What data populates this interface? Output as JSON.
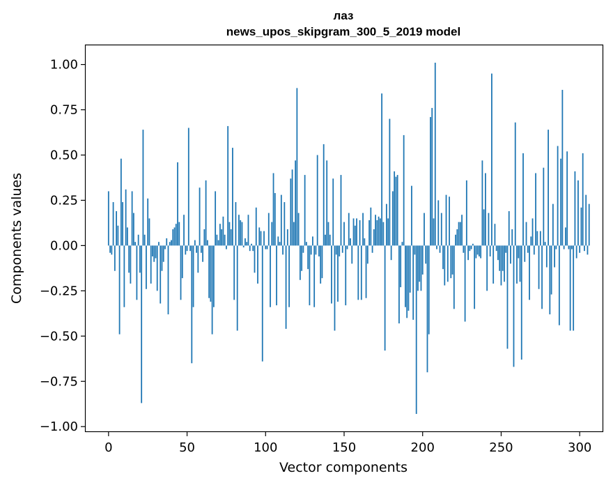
{
  "chart_data": {
    "type": "bar",
    "title": "лаз",
    "subtitle": "news_upos_skipgram_300_5_2019 model",
    "xlabel": "Vector components",
    "ylabel": "Components values",
    "xlim": [
      -15,
      315
    ],
    "ylim": [
      -1.03,
      1.11
    ],
    "xticks": [
      0,
      50,
      100,
      150,
      200,
      250,
      300
    ],
    "xtick_labels": [
      "0",
      "50",
      "100",
      "150",
      "200",
      "250",
      "300"
    ],
    "yticks": [
      1.0,
      0.75,
      0.5,
      0.25,
      0.0,
      -0.25,
      -0.5,
      -0.75,
      -1.0
    ],
    "ytick_labels": [
      "1.00",
      "0.75",
      "0.50",
      "0.25",
      "0.00",
      "−0.25",
      "−0.50",
      "−0.75",
      "−1.00"
    ],
    "bar_color": "#1f77b4",
    "values": [
      0.3,
      -0.04,
      -0.05,
      0.24,
      -0.14,
      0.19,
      0.11,
      -0.49,
      0.48,
      0.24,
      -0.34,
      0.31,
      0.1,
      -0.15,
      -0.21,
      0.3,
      0.18,
      0.02,
      -0.3,
      0.06,
      -0.15,
      -0.87,
      0.64,
      0.06,
      -0.24,
      0.26,
      0.15,
      -0.21,
      -0.06,
      -0.09,
      -0.07,
      -0.25,
      0.02,
      -0.32,
      -0.14,
      -0.09,
      -0.02,
      0.04,
      -0.38,
      0.02,
      0.03,
      0.09,
      0.1,
      0.12,
      0.46,
      0.13,
      -0.3,
      -0.18,
      0.17,
      -0.05,
      -0.03,
      0.65,
      -0.03,
      -0.65,
      -0.34,
      0.03,
      -0.04,
      -0.15,
      0.32,
      -0.04,
      -0.09,
      0.09,
      0.36,
      0.03,
      -0.29,
      -0.31,
      -0.49,
      -0.34,
      0.3,
      0.06,
      0.03,
      0.12,
      0.09,
      0.16,
      0.06,
      -0.02,
      0.66,
      0.13,
      0.09,
      0.54,
      -0.3,
      0.24,
      -0.47,
      0.17,
      0.14,
      0.13,
      -0.01,
      0.04,
      0.02,
      0.17,
      -0.03,
      0.01,
      -0.03,
      -0.15,
      0.21,
      -0.21,
      0.1,
      0.08,
      -0.64,
      0.08,
      -0.02,
      -0.02,
      0.18,
      -0.34,
      0.13,
      0.4,
      0.29,
      -0.33,
      0.05,
      0.02,
      0.28,
      -0.05,
      0.24,
      -0.46,
      0.09,
      -0.34,
      0.37,
      0.42,
      0.13,
      0.47,
      0.87,
      0.18,
      -0.19,
      -0.14,
      -0.04,
      0.39,
      0.02,
      -0.13,
      -0.33,
      -0.05,
      0.05,
      -0.34,
      -0.05,
      0.5,
      -0.06,
      -0.21,
      -0.18,
      0.56,
      0.06,
      0.47,
      0.13,
      0.06,
      -0.32,
      0.37,
      -0.47,
      -0.05,
      -0.31,
      -0.06,
      0.39,
      -0.04,
      0.13,
      -0.33,
      -0.02,
      0.18,
      0.04,
      -0.1,
      0.15,
      0.11,
      0.15,
      -0.3,
      0.14,
      -0.3,
      0.18,
      0.04,
      -0.29,
      -0.1,
      0.14,
      0.21,
      -0.04,
      0.09,
      0.17,
      0.14,
      0.16,
      0.15,
      0.84,
      0.13,
      -0.58,
      0.23,
      0.15,
      0.7,
      -0.08,
      0.3,
      0.41,
      0.38,
      0.39,
      -0.43,
      -0.23,
      0.02,
      0.61,
      -0.34,
      -0.4,
      -0.36,
      -0.26,
      0.33,
      -0.41,
      -0.05,
      -0.93,
      -0.25,
      -0.2,
      -0.25,
      -0.16,
      0.18,
      -0.1,
      -0.7,
      -0.49,
      0.71,
      0.76,
      0.15,
      1.01,
      -0.02,
      0.25,
      -0.04,
      0.18,
      -0.13,
      -0.22,
      0.28,
      -0.2,
      0.27,
      -0.18,
      -0.16,
      -0.35,
      0.06,
      0.09,
      0.13,
      0.13,
      0.17,
      -0.04,
      -0.42,
      0.36,
      -0.08,
      -0.03,
      -0.02,
      0.01,
      -0.35,
      -0.07,
      -0.05,
      -0.06,
      -0.07,
      0.47,
      0.2,
      0.4,
      -0.25,
      0.18,
      -0.06,
      0.95,
      -0.21,
      0.12,
      -0.03,
      -0.08,
      -0.14,
      -0.22,
      -0.14,
      -0.2,
      -0.04,
      -0.57,
      0.19,
      -0.1,
      0.09,
      -0.67,
      0.68,
      -0.21,
      -0.07,
      -0.2,
      -0.63,
      0.51,
      -0.09,
      0.13,
      -0.04,
      -0.3,
      0.05,
      0.15,
      -0.05,
      0.4,
      0.08,
      -0.24,
      0.08,
      -0.35,
      0.43,
      0.02,
      -0.12,
      0.64,
      -0.38,
      -0.27,
      0.23,
      -0.12,
      -0.02,
      0.55,
      -0.44,
      0.48,
      0.86,
      -0.02,
      0.1,
      0.52,
      -0.02,
      -0.47,
      -0.02,
      -0.47,
      0.41,
      -0.07,
      0.36,
      -0.04,
      0.21,
      0.51,
      -0.03,
      0.28,
      -0.05,
      0.23
    ]
  }
}
